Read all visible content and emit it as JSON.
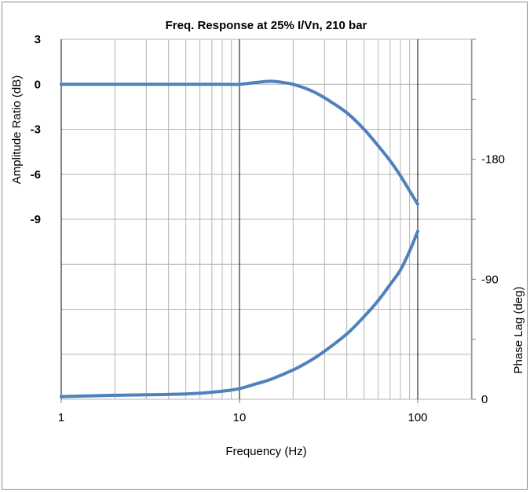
{
  "chart_data": {
    "type": "line",
    "title": "Freq. Response at 25% I/Vn, 210 bar",
    "xlabel": "Frequency (Hz)",
    "ylabel_left": "Amplitude Ratio (dB)",
    "ylabel_right": "Phase Lag (deg)",
    "x_scale": "log",
    "xlim": [
      1,
      200
    ],
    "x_ticks": [
      "1",
      "10",
      "100"
    ],
    "left_axis": {
      "ylim": [
        -21,
        3
      ],
      "ticks": [
        "3",
        "0",
        "-3",
        "-6",
        "-9"
      ]
    },
    "right_axis": {
      "ylim": [
        0,
        270
      ],
      "ticks": [
        "-180",
        "-90",
        "0"
      ]
    },
    "grid": true,
    "series": [
      {
        "axis": "left",
        "color": "#4f81bd",
        "x": [
          1,
          2,
          5,
          8,
          10,
          12,
          15,
          18,
          20,
          25,
          30,
          40,
          50,
          60,
          70,
          80,
          90,
          100
        ],
        "y": [
          0,
          0,
          0,
          0,
          0,
          0.1,
          0.2,
          0.1,
          0,
          -0.4,
          -0.9,
          -1.9,
          -3.0,
          -4.1,
          -5.1,
          -6.1,
          -7.1,
          -8.0
        ]
      },
      {
        "axis": "right",
        "color": "#4f81bd",
        "x": [
          1,
          2,
          5,
          8,
          10,
          12,
          15,
          20,
          25,
          30,
          40,
          50,
          60,
          70,
          80,
          90,
          100
        ],
        "y": [
          2,
          3,
          4,
          6,
          8,
          11,
          15,
          22,
          29,
          36,
          49,
          62,
          74,
          86,
          97,
          111,
          126
        ]
      }
    ]
  }
}
